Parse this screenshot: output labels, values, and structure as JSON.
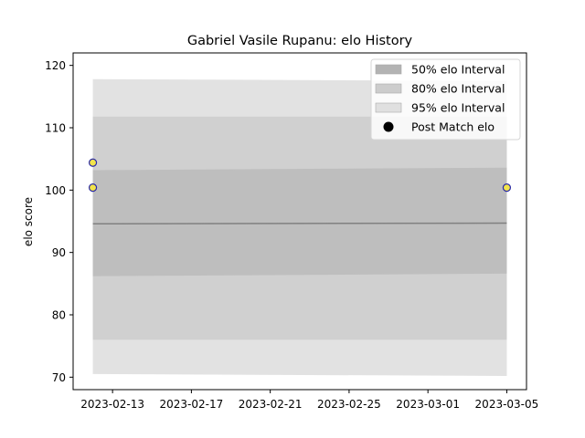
{
  "chart_data": {
    "type": "line",
    "title": "Gabriel Vasile Rupanu: elo History",
    "xlabel": "",
    "ylabel": "elo score",
    "x_ticks": [
      "2023-02-13",
      "2023-02-17",
      "2023-02-21",
      "2023-02-25",
      "2023-03-01",
      "2023-03-05"
    ],
    "xlim": [
      "2023-02-11",
      "2023-03-06"
    ],
    "y_ticks": [
      70,
      80,
      90,
      100,
      110,
      120
    ],
    "ylim": [
      68,
      122
    ],
    "grid": false,
    "legend_position": "top-right",
    "mean_line": {
      "x": [
        "2023-02-12",
        "2023-03-05"
      ],
      "y": [
        94.6,
        94.7
      ],
      "color": "#808080"
    },
    "bands": [
      {
        "name": "95% elo Interval",
        "x": [
          "2023-02-12",
          "2023-03-05"
        ],
        "lower": [
          70.5,
          70.2
        ],
        "upper": [
          117.8,
          117.5
        ],
        "color": "#e2e2e2"
      },
      {
        "name": "80% elo Interval",
        "x": [
          "2023-02-12",
          "2023-03-05"
        ],
        "lower": [
          76.0,
          76.0
        ],
        "upper": [
          111.8,
          111.8
        ],
        "color": "#d0d0d0"
      },
      {
        "name": "50% elo Interval",
        "x": [
          "2023-02-12",
          "2023-03-05"
        ],
        "lower": [
          86.2,
          86.6
        ],
        "upper": [
          103.2,
          103.6
        ],
        "color": "#bebebe"
      }
    ],
    "points": {
      "name": "Post Match elo",
      "x": [
        "2023-02-12",
        "2023-02-12",
        "2023-03-05"
      ],
      "y": [
        104.4,
        100.4,
        100.4
      ],
      "fill": "#f2e44a",
      "edge": "#2a2aa8"
    },
    "legend": [
      {
        "label": "50% elo Interval",
        "swatch": "band",
        "color": "#b3b3b3"
      },
      {
        "label": "80% elo Interval",
        "swatch": "band",
        "color": "#cccccc"
      },
      {
        "label": "95% elo Interval",
        "swatch": "band",
        "color": "#e0e0e0"
      },
      {
        "label": "Post Match elo",
        "swatch": "marker",
        "color": "#000000"
      }
    ]
  }
}
